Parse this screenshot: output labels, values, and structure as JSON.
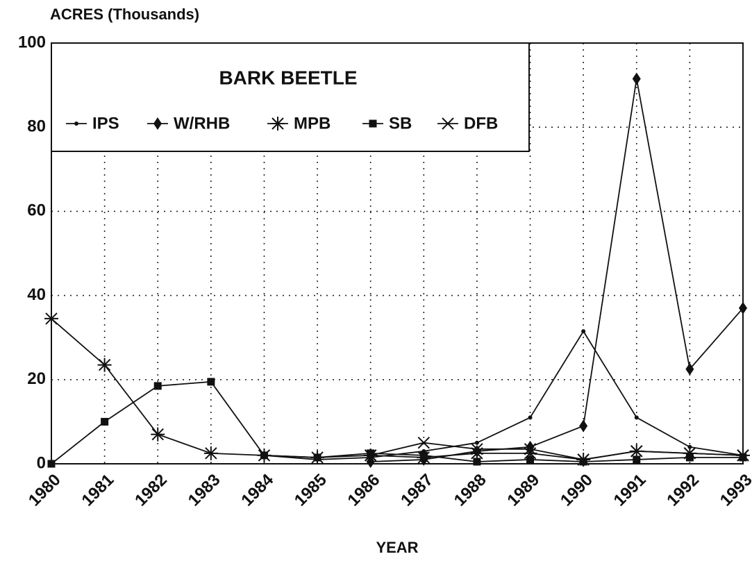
{
  "chart_data": {
    "type": "line",
    "title": "BARK BEETLE",
    "y_label": "ACRES (Thousands)",
    "x_label": "YEAR",
    "categories": [
      "1980",
      "1981",
      "1982",
      "1983",
      "1984",
      "1985",
      "1986",
      "1987",
      "1988",
      "1989",
      "1990",
      "1991",
      "1992",
      "1993"
    ],
    "ylim": [
      0,
      100
    ],
    "yticks": [
      0,
      20,
      40,
      60,
      80,
      100
    ],
    "grid": true,
    "legend": "top-left",
    "series": [
      {
        "name": "IPS",
        "color": "#111111",
        "marker": "dot",
        "values": [
          null,
          null,
          null,
          null,
          2,
          1,
          1.5,
          3,
          5,
          11,
          31.5,
          11,
          4,
          2
        ]
      },
      {
        "name": "W/RHB",
        "color": "#111111",
        "marker": "diamond",
        "values": [
          null,
          null,
          null,
          null,
          null,
          null,
          0.5,
          1,
          3,
          4,
          9,
          91.5,
          22.5,
          37
        ]
      },
      {
        "name": "MPB",
        "color": "#111111",
        "marker": "asterisk",
        "values": [
          34.5,
          23.5,
          7,
          2.5,
          2,
          1.5,
          2,
          1.5,
          2.5,
          2.5,
          1,
          3,
          2.5,
          2
        ]
      },
      {
        "name": "SB",
        "color": "#111111",
        "marker": "square",
        "values": [
          0,
          10,
          18.5,
          19.5,
          2,
          1.5,
          2.5,
          2,
          0.5,
          1,
          0.5,
          1,
          1.5,
          1.5
        ]
      },
      {
        "name": "DFB",
        "color": "#111111",
        "marker": "x",
        "values": [
          null,
          null,
          null,
          null,
          null,
          null,
          2,
          5,
          3.5,
          3.5,
          1,
          3,
          2.5,
          2
        ]
      }
    ]
  }
}
